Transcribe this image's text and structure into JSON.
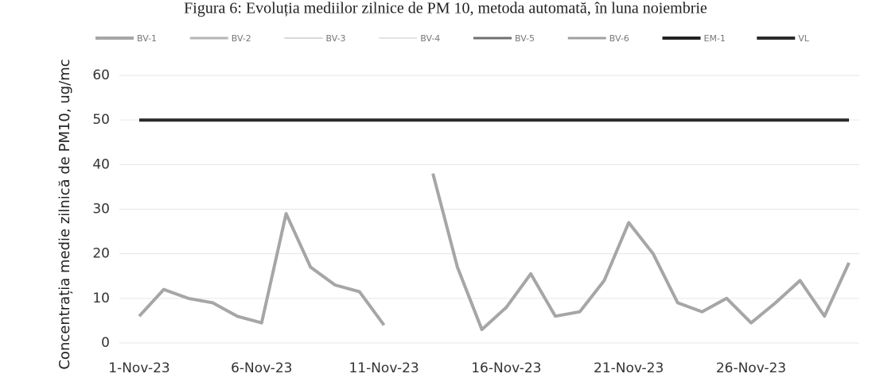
{
  "chart_data": {
    "type": "line",
    "title": "Figura 6: Evoluția mediilor zilnice de PM 10, metoda automată, în luna noiembrie",
    "y_label": "Concentrația medie zilnică de PM10, ug/mc",
    "categories": [
      "1-Nov-23",
      null,
      null,
      null,
      null,
      "6-Nov-23",
      null,
      null,
      null,
      null,
      "11-Nov-23",
      null,
      null,
      null,
      null,
      "16-Nov-23",
      null,
      null,
      null,
      null,
      "21-Nov-23",
      null,
      null,
      null,
      null,
      "26-Nov-23",
      null,
      null,
      null,
      null
    ],
    "series": [
      {
        "name": "BV-1",
        "color": "#a6a6a6",
        "width": 4,
        "values": [
          6,
          12,
          10,
          9,
          6,
          4.5,
          29,
          17,
          13,
          11.5,
          4,
          null,
          38,
          17,
          3,
          8,
          15.5,
          6,
          7,
          14,
          27,
          20,
          9,
          7,
          10,
          4.5,
          9,
          14,
          6,
          18
        ]
      },
      {
        "name": "BV-2",
        "color": "#b5b5b5",
        "width": 3,
        "values": [
          null,
          null,
          null,
          null,
          null,
          null,
          null,
          null,
          null,
          null,
          null,
          null,
          null,
          null,
          null,
          null,
          null,
          null,
          null,
          null,
          null,
          null,
          null,
          null,
          null,
          null,
          null,
          null,
          null,
          null
        ]
      },
      {
        "name": "BV-3",
        "color": "#d9d9d9",
        "width": 2,
        "values": [
          null,
          null,
          null,
          null,
          null,
          null,
          null,
          null,
          null,
          null,
          null,
          null,
          null,
          null,
          null,
          null,
          null,
          null,
          null,
          null,
          null,
          null,
          null,
          null,
          null,
          null,
          null,
          null,
          null,
          null
        ]
      },
      {
        "name": "BV-4",
        "color": "#e3e3e3",
        "width": 2,
        "values": [
          null,
          null,
          null,
          null,
          null,
          null,
          null,
          null,
          null,
          null,
          null,
          null,
          null,
          null,
          null,
          null,
          null,
          null,
          null,
          null,
          null,
          null,
          null,
          null,
          null,
          null,
          null,
          null,
          null,
          null
        ]
      },
      {
        "name": "BV-5",
        "color": "#707070",
        "width": 3,
        "values": [
          null,
          null,
          null,
          null,
          null,
          null,
          null,
          null,
          null,
          null,
          null,
          null,
          null,
          null,
          null,
          null,
          null,
          null,
          null,
          null,
          null,
          null,
          null,
          null,
          null,
          null,
          null,
          null,
          null,
          null
        ]
      },
      {
        "name": "BV-6",
        "color": "#a0a0a0",
        "width": 3,
        "values": [
          null,
          null,
          null,
          null,
          null,
          null,
          null,
          null,
          null,
          null,
          null,
          null,
          null,
          null,
          null,
          null,
          null,
          null,
          null,
          null,
          null,
          null,
          null,
          null,
          null,
          null,
          null,
          null,
          null,
          null
        ]
      },
      {
        "name": "EM-1",
        "color": "#222222",
        "width": 4,
        "values": [
          null,
          null,
          null,
          null,
          null,
          null,
          null,
          null,
          null,
          null,
          null,
          null,
          null,
          null,
          null,
          null,
          null,
          null,
          null,
          null,
          null,
          null,
          null,
          null,
          null,
          null,
          null,
          null,
          null,
          null
        ]
      },
      {
        "name": "VL",
        "color": "#2a2a2a",
        "width": 4,
        "values": [
          50,
          50,
          50,
          50,
          50,
          50,
          50,
          50,
          50,
          50,
          50,
          50,
          50,
          50,
          50,
          50,
          50,
          50,
          50,
          50,
          50,
          50,
          50,
          50,
          50,
          50,
          50,
          50,
          50,
          50
        ]
      }
    ],
    "ylim": [
      0,
      60
    ],
    "yticks": [
      0,
      10,
      20,
      30,
      40,
      50,
      60
    ],
    "grid": true
  }
}
